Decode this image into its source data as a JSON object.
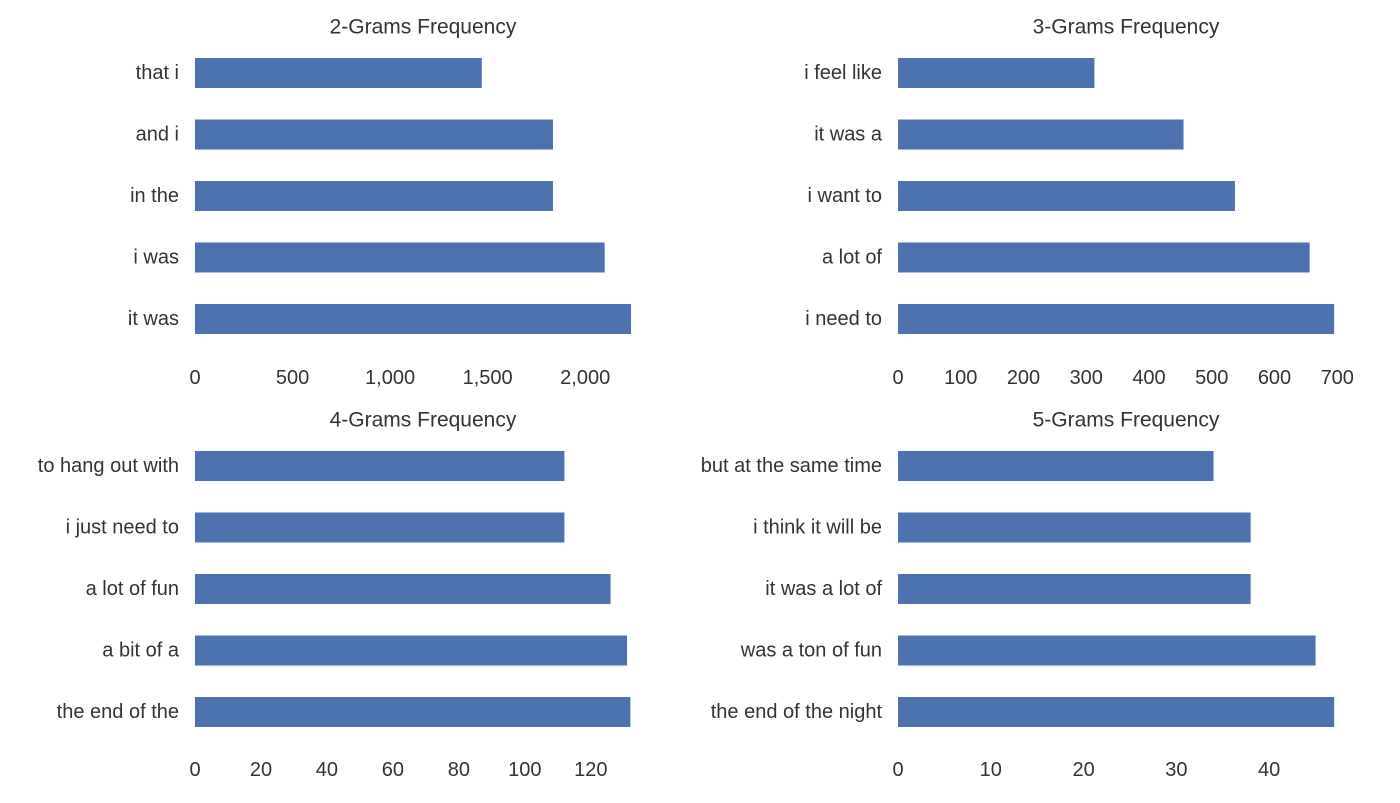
{
  "colors": {
    "bar": "#4c72b0",
    "text": "#333333",
    "background": "#ffffff"
  },
  "chart_data": [
    {
      "type": "bar",
      "orientation": "horizontal",
      "title": "2-Grams Frequency",
      "categories": [
        "that i",
        "and i",
        "in the",
        "i was",
        "it was"
      ],
      "values": [
        1470,
        1835,
        1835,
        2100,
        2235
      ],
      "xticks": [
        0,
        500,
        1000,
        1500,
        2000
      ],
      "xtick_labels": [
        "0",
        "500",
        "1,000",
        "1,500",
        "2,000"
      ],
      "xlim": [
        0,
        2240
      ],
      "xlabel": "",
      "ylabel": "",
      "grid": false,
      "legend": "none"
    },
    {
      "type": "bar",
      "orientation": "horizontal",
      "title": "3-Grams Frequency",
      "categories": [
        "i feel like",
        "it was a",
        "i want to",
        "a lot of",
        "i need to"
      ],
      "values": [
        313,
        455,
        537,
        656,
        695
      ],
      "xticks": [
        0,
        100,
        200,
        300,
        400,
        500,
        600,
        700
      ],
      "xtick_labels": [
        "0",
        "100",
        "200",
        "300",
        "400",
        "500",
        "600",
        "700"
      ],
      "xlim": [
        0,
        698
      ],
      "xlabel": "",
      "ylabel": "",
      "grid": false,
      "legend": "none"
    },
    {
      "type": "bar",
      "orientation": "horizontal",
      "title": "4-Grams Frequency",
      "categories": [
        "to hang out with",
        "i just need to",
        "a lot of fun",
        "a bit of a",
        "the end of the"
      ],
      "values": [
        112,
        112,
        126,
        131,
        132
      ],
      "xticks": [
        0,
        20,
        40,
        60,
        80,
        100,
        120
      ],
      "xtick_labels": [
        "0",
        "20",
        "40",
        "60",
        "80",
        "100",
        "120"
      ],
      "xlim": [
        0,
        132.5
      ],
      "xlabel": "",
      "ylabel": "",
      "grid": false,
      "legend": "none"
    },
    {
      "type": "bar",
      "orientation": "horizontal",
      "title": "5-Grams Frequency",
      "categories": [
        "but at the same time",
        "i think it will be",
        "it was a lot of",
        "was a ton of fun",
        "the end of the night"
      ],
      "values": [
        34,
        38,
        38,
        45,
        47
      ],
      "xticks": [
        0,
        10,
        20,
        30,
        40
      ],
      "xtick_labels": [
        "0",
        "10",
        "20",
        "30",
        "40"
      ],
      "xlim": [
        0,
        47.2
      ],
      "xlabel": "",
      "ylabel": "",
      "grid": false,
      "legend": "none"
    }
  ]
}
